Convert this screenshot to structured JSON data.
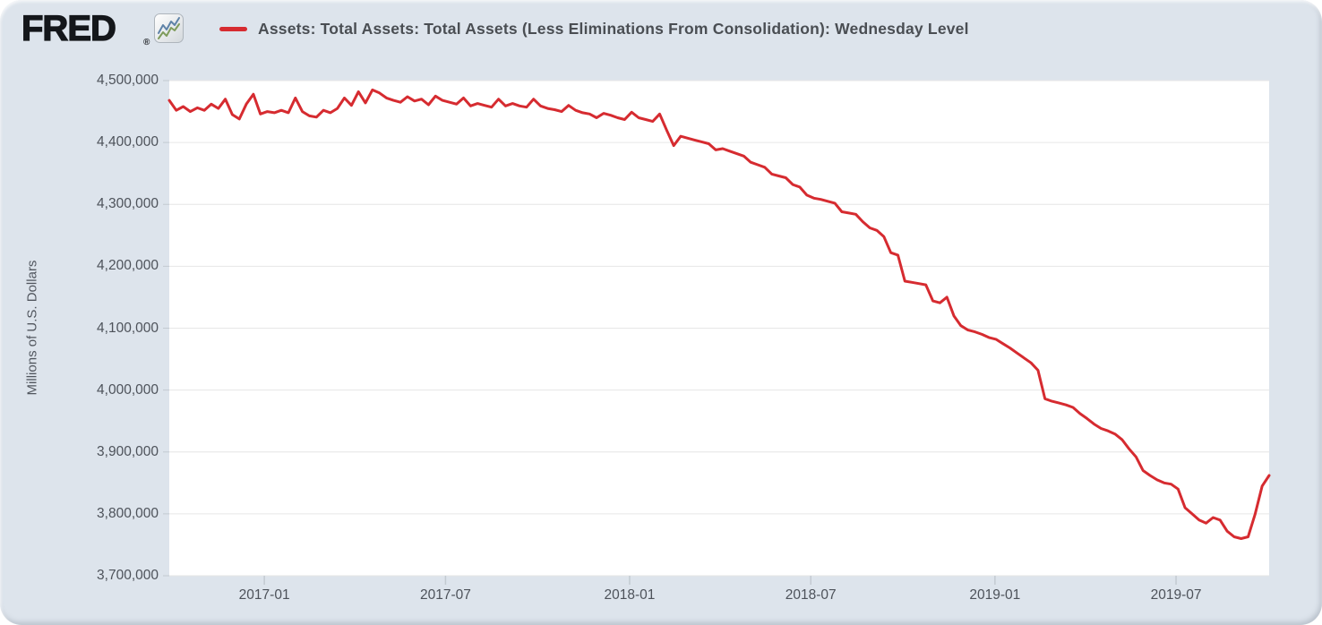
{
  "header": {
    "logo_text": "FRED",
    "registered_mark": "®",
    "series_title": "Assets: Total Assets: Total Assets (Less Eliminations From Consolidation): Wednesday Level"
  },
  "colors": {
    "card_background": "#dde4ec",
    "plot_background": "#ffffff",
    "gridline": "#e6e6e6",
    "tick_mark": "#c3cad1",
    "tick_text": "#4d525a",
    "title_text": "#4a4e53",
    "line": "#d62b30"
  },
  "chart_data": {
    "type": "line",
    "title": "Assets: Total Assets: Total Assets (Less Eliminations From Consolidation): Wednesday Level",
    "xlabel": "",
    "ylabel": "Millions of U.S. Dollars",
    "ylim": [
      3700000,
      4500000
    ],
    "grid": "horizontal",
    "legend_position": "top-left",
    "frequency": "weekly (Wednesday level)",
    "x_range_approx": [
      "2016-09-28",
      "2019-10-02"
    ],
    "y_ticks": [
      4500000,
      4400000,
      4300000,
      4200000,
      4100000,
      4000000,
      3900000,
      3800000,
      3700000
    ],
    "y_tick_labels": [
      "4,500,000",
      "4,400,000",
      "4,300,000",
      "4,200,000",
      "4,100,000",
      "4,000,000",
      "3,900,000",
      "3,800,000",
      "3,700,000"
    ],
    "x_ticks": [
      {
        "label": "2017-01",
        "week_index": 13.57
      },
      {
        "label": "2017-07",
        "week_index": 39.43
      },
      {
        "label": "2018-01",
        "week_index": 65.71
      },
      {
        "label": "2018-07",
        "week_index": 91.57
      },
      {
        "label": "2019-01",
        "week_index": 117.86
      },
      {
        "label": "2019-07",
        "week_index": 143.71
      }
    ],
    "series": [
      {
        "name": "Assets: Total Assets: Total Assets (Less Eliminations From Consolidation): Wednesday Level",
        "color": "#d62b30",
        "values": [
          4468000,
          4452000,
          4458000,
          4450000,
          4456000,
          4452000,
          4462000,
          4455000,
          4470000,
          4445000,
          4438000,
          4462000,
          4478000,
          4446000,
          4450000,
          4448000,
          4452000,
          4448000,
          4472000,
          4450000,
          4443000,
          4441000,
          4452000,
          4448000,
          4455000,
          4472000,
          4460000,
          4482000,
          4464000,
          4485000,
          4480000,
          4472000,
          4468000,
          4465000,
          4474000,
          4467000,
          4470000,
          4461000,
          4475000,
          4468000,
          4465000,
          4462000,
          4472000,
          4459000,
          4463000,
          4460000,
          4457000,
          4470000,
          4459000,
          4463000,
          4459000,
          4457000,
          4470000,
          4459000,
          4455000,
          4453000,
          4450000,
          4460000,
          4452000,
          4448000,
          4446000,
          4440000,
          4447000,
          4444000,
          4440000,
          4437000,
          4449000,
          4440000,
          4437000,
          4434000,
          4446000,
          4420000,
          4395000,
          4410000,
          4407000,
          4404000,
          4401000,
          4398000,
          4388000,
          4390000,
          4386000,
          4382000,
          4378000,
          4368000,
          4364000,
          4360000,
          4349000,
          4346000,
          4343000,
          4332000,
          4328000,
          4315000,
          4310000,
          4308000,
          4305000,
          4302000,
          4288000,
          4286000,
          4284000,
          4272000,
          4262000,
          4258000,
          4248000,
          4222000,
          4218000,
          4176000,
          4174000,
          4172000,
          4170000,
          4144000,
          4141000,
          4150000,
          4120000,
          4104000,
          4097000,
          4094000,
          4090000,
          4085000,
          4082000,
          4075000,
          4068000,
          4060000,
          4052000,
          4044000,
          4032000,
          3986000,
          3982000,
          3979000,
          3976000,
          3972000,
          3962000,
          3954000,
          3945000,
          3938000,
          3934000,
          3929000,
          3920000,
          3905000,
          3892000,
          3870000,
          3862000,
          3855000,
          3850000,
          3848000,
          3840000,
          3810000,
          3800000,
          3790000,
          3785000,
          3794000,
          3790000,
          3772000,
          3763000,
          3760000,
          3763000,
          3800000,
          3845000,
          3862000
        ]
      }
    ]
  }
}
